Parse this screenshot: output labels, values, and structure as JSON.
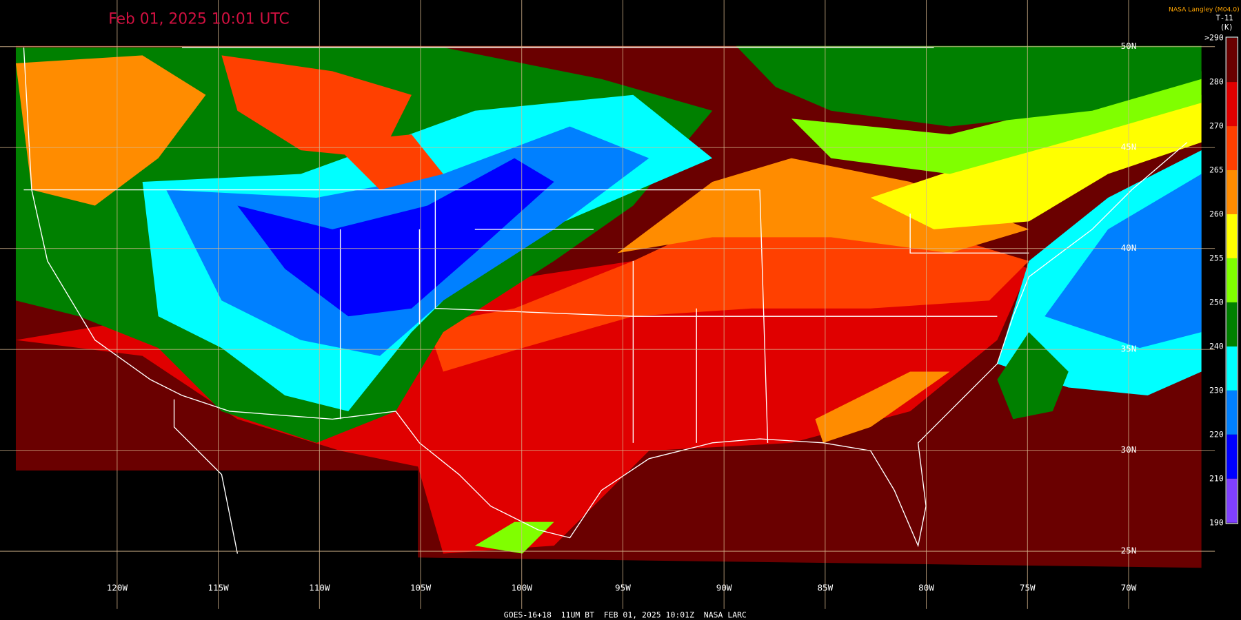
{
  "header": {
    "title": "Feb 01, 2025 10:01 UTC",
    "credit": "NASA Langley (M04.0)"
  },
  "colorbar": {
    "title": "T-11",
    "unit": "(K)",
    "labels": [
      ">290",
      "280",
      "270",
      "265",
      "260",
      "255",
      "250",
      "240",
      "230",
      "220",
      "210",
      "190"
    ],
    "colors": [
      "#6a0000",
      "#e00000",
      "#ff4000",
      "#ff8c00",
      "#ffff00",
      "#80ff00",
      "#008000",
      "#00ffff",
      "#0080ff",
      "#0000ff",
      "#8040ff"
    ]
  },
  "grid": {
    "longitudes": [
      "120W",
      "115W",
      "110W",
      "105W",
      "100W",
      "95W",
      "90W",
      "85W",
      "80W",
      "75W",
      "70W"
    ],
    "latitudes": [
      "50N",
      "45N",
      "40N",
      "35N",
      "30N",
      "25N"
    ]
  },
  "footer": "GOES-16+18  11UM BT  FEB 01, 2025 10:01Z  NASA LARC"
}
